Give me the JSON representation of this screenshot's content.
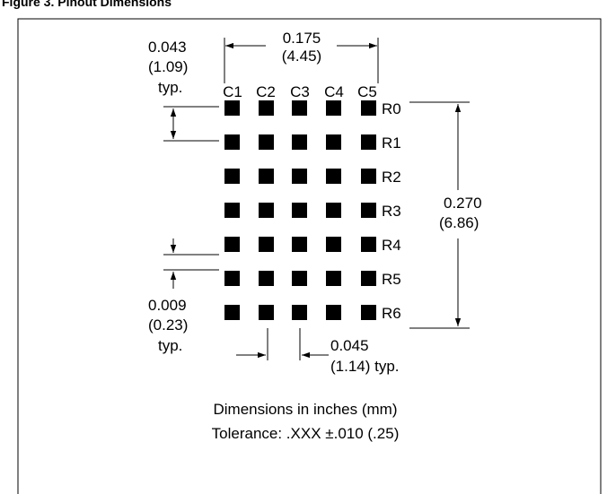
{
  "figure": {
    "title": "Figure 3. Pinout Dimensions",
    "columns": [
      "C1",
      "C2",
      "C3",
      "C4",
      "C5"
    ],
    "rows": [
      "R0",
      "R1",
      "R2",
      "R3",
      "R4",
      "R5",
      "R6"
    ],
    "dimensions": {
      "width": {
        "in": "0.175",
        "mm": "(4.45)"
      },
      "pitch": {
        "in": "0.043",
        "mm": "(1.09)",
        "note": "typ."
      },
      "height": {
        "in": "0.270",
        "mm": "(6.86)"
      },
      "gap": {
        "in": "0.009",
        "mm": "(0.23)",
        "note": "typ."
      },
      "pad": {
        "in": "0.045",
        "mm": "(1.14) typ."
      }
    },
    "caption": {
      "line1": "Dimensions in inches (mm)",
      "line2": "Tolerance: .XXX ±.010 (.25)"
    }
  }
}
